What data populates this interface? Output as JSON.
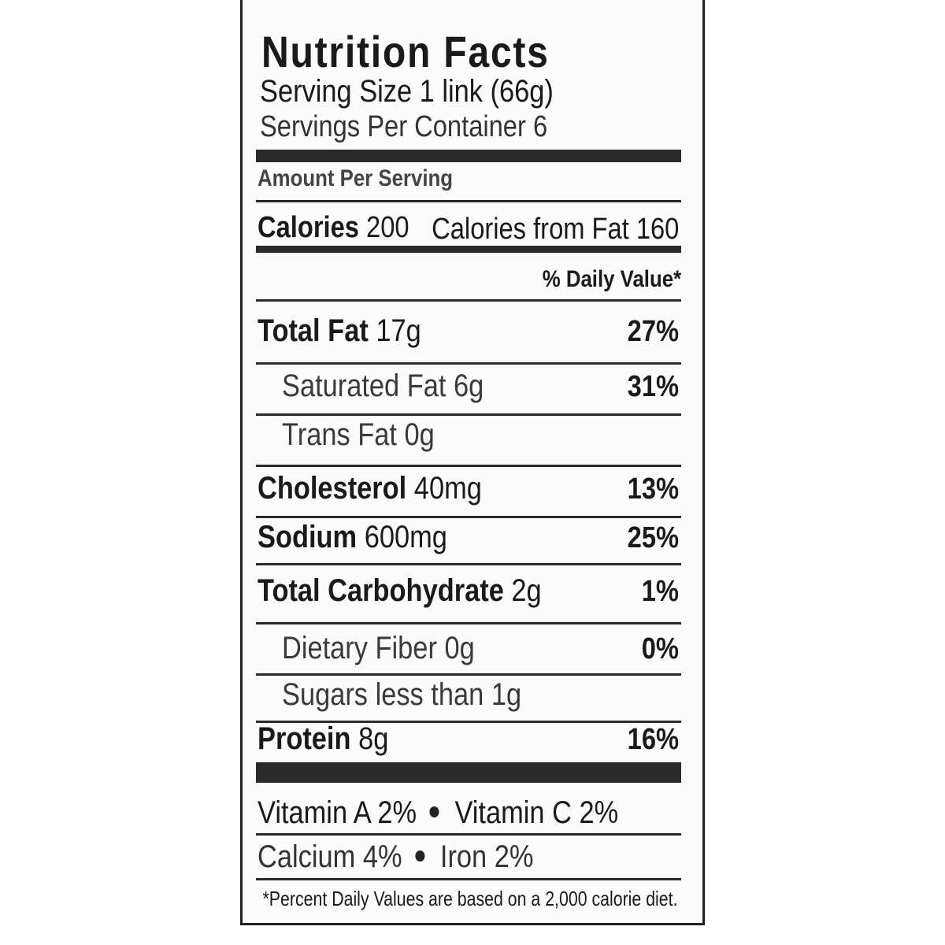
{
  "title": "Nutrition Facts",
  "serving_size": "Serving Size 1 link (66g)",
  "servings_per_container": "Servings Per Container 6",
  "amount_per_serving": "Amount Per Serving",
  "calories": {
    "label": "Calories",
    "value": "200",
    "from_fat": "Calories from Fat 160"
  },
  "daily_value_header": "% Daily Value*",
  "nutrients": [
    {
      "name": "Total Fat",
      "amount": "17g",
      "dv": "27%",
      "indent": false
    },
    {
      "name": "Saturated Fat",
      "amount": "6g",
      "dv": "31%",
      "indent": true
    },
    {
      "name": "Trans Fat",
      "amount": "0g",
      "indent": true
    },
    {
      "name": "Cholesterol",
      "amount": "40mg",
      "dv": "13%",
      "indent": false
    },
    {
      "name": "Sodium",
      "amount": "600mg",
      "dv": "25%",
      "indent": false
    },
    {
      "name": "Total Carbohydrate",
      "amount": "2g",
      "dv": "1%",
      "indent": false
    },
    {
      "name": "Dietary Fiber",
      "amount": "0g",
      "dv": "0%",
      "indent": true
    },
    {
      "name": "Sugars",
      "amount": "less than 1g",
      "indent": true
    },
    {
      "name": "Protein",
      "amount": "8g",
      "dv": "16%",
      "indent": false
    }
  ],
  "vitamins": [
    [
      {
        "name": "Vitamin A",
        "dv": "2%"
      },
      {
        "name": "Vitamin C",
        "dv": "2%"
      }
    ],
    [
      {
        "name": "Calcium",
        "dv": "4%"
      },
      {
        "name": "Iron",
        "dv": "2%"
      }
    ]
  ],
  "footnote": "*Percent Daily Values are based on a 2,000 calorie diet."
}
